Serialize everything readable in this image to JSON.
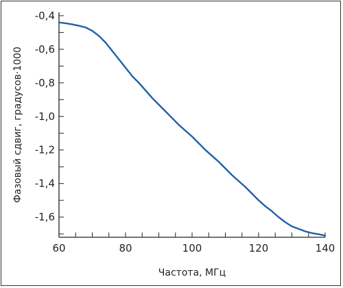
{
  "chart_data": {
    "type": "line",
    "title": "",
    "xlabel": "Частота, МГц",
    "ylabel": "Фазовый сдвиг, градусов·1000",
    "xlim": [
      60,
      140
    ],
    "ylim": [
      -1.72,
      -0.38
    ],
    "x_ticks": [
      60,
      80,
      100,
      120,
      140
    ],
    "x_tick_labels": [
      "60",
      "80",
      "100",
      "120",
      "140"
    ],
    "y_ticks": [
      -0.4,
      -0.6,
      -0.8,
      -1.0,
      -1.2,
      -1.4,
      -1.6
    ],
    "y_tick_labels": [
      "-0,4",
      "-0,6",
      "-0,8",
      "-1,0",
      "-1,2",
      "-1,4",
      "-1,6"
    ],
    "grid": false,
    "legend": false,
    "color": "#1f5fa8",
    "series": [
      {
        "x": [
          60,
          62,
          64,
          66,
          68,
          70,
          72,
          74,
          76,
          78,
          80,
          82,
          84,
          86,
          88,
          90,
          92,
          94,
          96,
          98,
          100,
          102,
          104,
          106,
          108,
          110,
          112,
          114,
          116,
          118,
          120,
          122,
          124,
          126,
          128,
          130,
          132,
          134,
          136,
          138,
          140
        ],
        "y": [
          -0.44,
          -0.445,
          -0.452,
          -0.46,
          -0.47,
          -0.49,
          -0.52,
          -0.56,
          -0.61,
          -0.66,
          -0.71,
          -0.76,
          -0.8,
          -0.845,
          -0.89,
          -0.93,
          -0.97,
          -1.01,
          -1.05,
          -1.085,
          -1.12,
          -1.16,
          -1.2,
          -1.235,
          -1.27,
          -1.31,
          -1.35,
          -1.385,
          -1.42,
          -1.46,
          -1.5,
          -1.535,
          -1.565,
          -1.6,
          -1.63,
          -1.655,
          -1.67,
          -1.685,
          -1.695,
          -1.702,
          -1.71
        ]
      }
    ]
  }
}
